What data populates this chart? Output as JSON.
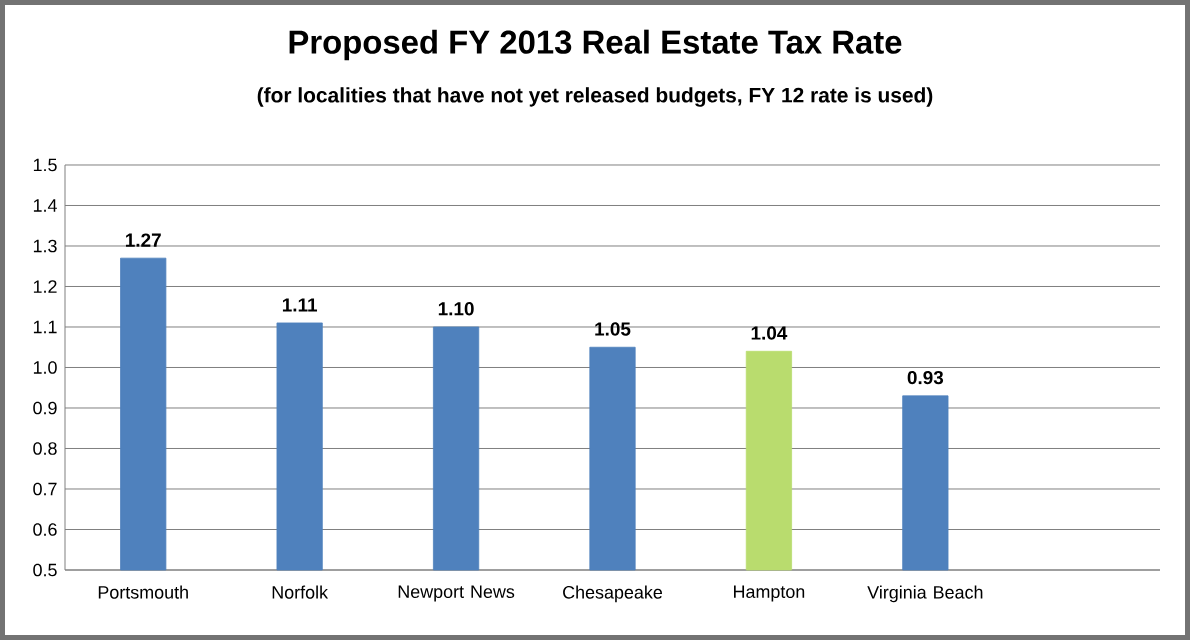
{
  "chart_data": {
    "type": "bar",
    "title": "Proposed FY 2013 Real Estate Tax Rate",
    "subtitle": "(for localities that have not yet released budgets, FY 12 rate is used)",
    "categories": [
      "Portsmouth",
      "Norfolk",
      "Newport News",
      "Chesapeake",
      "Hampton",
      "Virginia Beach",
      null
    ],
    "values": [
      1.27,
      1.11,
      1.1,
      1.05,
      1.04,
      0.93,
      null
    ],
    "value_labels": [
      "1.27",
      "1.11",
      "1.10",
      "1.05",
      "1.04",
      "0.93",
      null
    ],
    "colors": [
      "#4f81bd",
      "#4f81bd",
      "#4f81bd",
      "#4f81bd",
      "#b9dc6e",
      "#4f81bd",
      "#4f81bd"
    ],
    "ylim": [
      0.5,
      1.5
    ],
    "yticks": [
      {
        "value": 0.5,
        "label": "0.5"
      },
      {
        "value": 0.6,
        "label": "0.6"
      },
      {
        "value": 0.7,
        "label": "0.7"
      },
      {
        "value": 0.8,
        "label": "0.8"
      },
      {
        "value": 0.9,
        "label": "0.9"
      },
      {
        "value": 1.0,
        "label": "1.0"
      },
      {
        "value": 1.1,
        "label": "1.1"
      },
      {
        "value": 1.2,
        "label": "1.2"
      },
      {
        "value": 1.3,
        "label": "1.3"
      },
      {
        "value": 1.4,
        "label": "1.4"
      },
      {
        "value": 1.5,
        "label": "1.5"
      }
    ],
    "grid": "y"
  }
}
